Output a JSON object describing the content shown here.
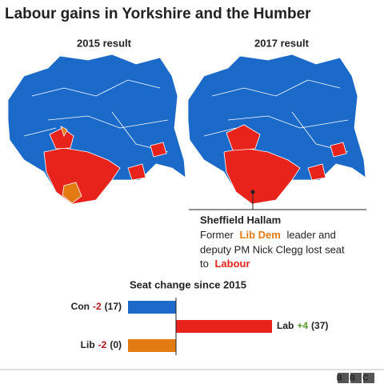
{
  "title": "Labour gains in Yorkshire and the Humber",
  "maps": [
    {
      "label": "2015 result"
    },
    {
      "label": "2017 result"
    }
  ],
  "annotation": {
    "heading": "Sheffield Hallam",
    "parts": [
      "Former",
      "Lib Dem",
      "leader and",
      "deputy PM Nick Clegg lost seat",
      "to",
      "Labour"
    ]
  },
  "chart_data": {
    "type": "bar",
    "orientation": "horizontal",
    "title": "Seat change since 2015",
    "categories": [
      "Con",
      "Lab",
      "Lib"
    ],
    "values": [
      -2,
      4,
      -2
    ],
    "value_labels": [
      "-2",
      "+4",
      "-2"
    ],
    "seats": [
      "(17)",
      "(37)",
      "(0)"
    ],
    "colors": [
      "#1b6ac9",
      "#e8231b",
      "#e37a12"
    ],
    "value_label_colors": [
      "#b3161a",
      "#5a9a2a",
      "#b3161a"
    ],
    "xlim": [
      -2,
      4
    ]
  },
  "footer": "BBC"
}
